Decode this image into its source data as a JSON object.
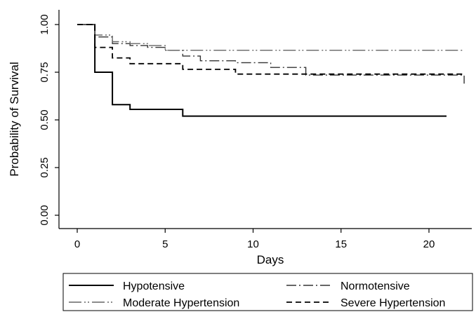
{
  "chart_data": {
    "type": "line",
    "step": true,
    "xlabel": "Days",
    "ylabel": "Probability of Survival",
    "xlim": [
      -1,
      22.5
    ],
    "ylim": [
      -0.06,
      1.08
    ],
    "xticks": [
      0,
      5,
      10,
      15,
      20
    ],
    "yticks": [
      0,
      0.25,
      0.5,
      0.75,
      1.0
    ],
    "xtick_labels": [
      "0",
      "5",
      "10",
      "15",
      "20"
    ],
    "ytick_labels": [
      "0.00",
      "0.25",
      "0.50",
      "0.75",
      "1.00"
    ],
    "grid": false,
    "legend_position": "bottom",
    "series": [
      {
        "name": "Hypotensive",
        "style": "solid",
        "color": "#000000",
        "points": [
          [
            0,
            1.0
          ],
          [
            1,
            1.0
          ],
          [
            1,
            0.75
          ],
          [
            2,
            0.75
          ],
          [
            2,
            0.58
          ],
          [
            3,
            0.58
          ],
          [
            3,
            0.555
          ],
          [
            6,
            0.555
          ],
          [
            6,
            0.52
          ],
          [
            21,
            0.52
          ]
        ]
      },
      {
        "name": "Normotensive",
        "style": "dashdot",
        "color": "#333333",
        "points": [
          [
            0,
            1.0
          ],
          [
            1,
            1.0
          ],
          [
            1,
            0.935
          ],
          [
            2,
            0.935
          ],
          [
            2,
            0.9
          ],
          [
            3,
            0.9
          ],
          [
            3,
            0.89
          ],
          [
            4,
            0.89
          ],
          [
            4,
            0.88
          ],
          [
            5,
            0.88
          ],
          [
            5,
            0.865
          ],
          [
            6,
            0.865
          ],
          [
            6,
            0.835
          ],
          [
            7,
            0.835
          ],
          [
            7,
            0.81
          ],
          [
            9,
            0.81
          ],
          [
            9,
            0.8
          ],
          [
            11,
            0.8
          ],
          [
            11,
            0.775
          ],
          [
            13,
            0.775
          ],
          [
            13,
            0.735
          ],
          [
            22,
            0.735
          ],
          [
            22,
            0.69
          ]
        ]
      },
      {
        "name": "Moderate Hypertension",
        "style": "dashdotdot",
        "color": "#666666",
        "points": [
          [
            0,
            1.0
          ],
          [
            1,
            1.0
          ],
          [
            1,
            0.945
          ],
          [
            2,
            0.945
          ],
          [
            2,
            0.91
          ],
          [
            3,
            0.91
          ],
          [
            3,
            0.9
          ],
          [
            4,
            0.9
          ],
          [
            4,
            0.89
          ],
          [
            5,
            0.89
          ],
          [
            5,
            0.865
          ],
          [
            22,
            0.865
          ]
        ]
      },
      {
        "name": "Severe Hypertension",
        "style": "dashed",
        "color": "#000000",
        "points": [
          [
            0,
            1.0
          ],
          [
            1,
            1.0
          ],
          [
            1,
            0.88
          ],
          [
            2,
            0.88
          ],
          [
            2,
            0.825
          ],
          [
            3,
            0.825
          ],
          [
            3,
            0.795
          ],
          [
            6,
            0.795
          ],
          [
            6,
            0.765
          ],
          [
            9,
            0.765
          ],
          [
            9,
            0.74
          ],
          [
            22,
            0.74
          ]
        ]
      }
    ],
    "legend_order": [
      "Hypotensive",
      "Normotensive",
      "Moderate Hypertension",
      "Severe Hypertension"
    ]
  }
}
